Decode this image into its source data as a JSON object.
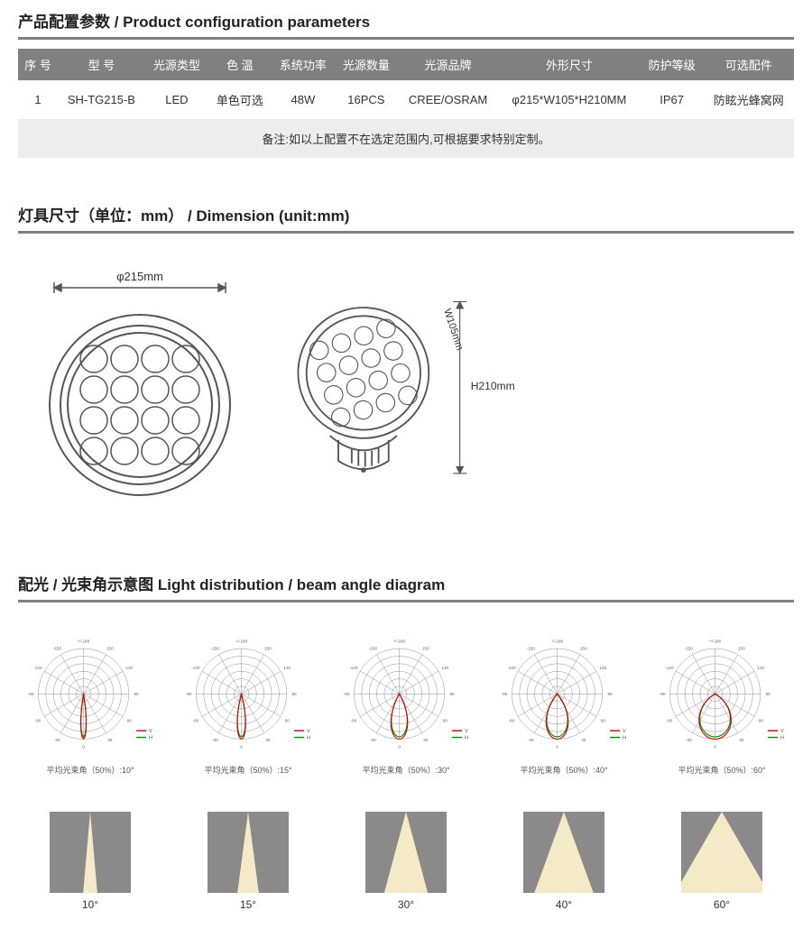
{
  "section1": {
    "title": "产品配置参数 / Product configuration parameters",
    "columns": [
      "序  号",
      "型  号",
      "光源类型",
      "色  温",
      "系统功率",
      "光源数量",
      "光源品牌",
      "外形尺寸",
      "防护等级",
      "可选配件"
    ],
    "row": [
      "1",
      "SH-TG215-B",
      "LED",
      "单色可选",
      "48W",
      "16PCS",
      "CREE/OSRAM",
      "φ215*W105*H210MM",
      "IP67",
      "防眩光蜂窝网"
    ],
    "note": "备注:如以上配置不在选定范围内,可根据要求特别定制。",
    "header_bg": "#808080",
    "header_fg": "#ffffff",
    "note_bg": "#ededed"
  },
  "section2": {
    "title": "灯具尺寸（单位：mm） / Dimension (unit:mm)",
    "diameter_label": "φ215mm",
    "width_label": "W105mm",
    "height_label": "H210mm",
    "led_count": 16,
    "stroke": "#555555"
  },
  "section3": {
    "title": "配光 / 光束角示意图  Light distribution / beam angle diagram",
    "polar": {
      "angle_labels": [
        "-180",
        "+/-180",
        "-150",
        "150",
        "-120",
        "120",
        "-90",
        "90",
        "-60",
        "60",
        "-30",
        "30",
        "0"
      ],
      "grid_color": "#888888",
      "curve_color_v": "#d00000",
      "curve_color_h": "#008800",
      "legend_v": "V",
      "legend_h": "H",
      "items": [
        {
          "half_angle": 10,
          "caption": "平均光束角（50%）:10°"
        },
        {
          "half_angle": 15,
          "caption": "平均光束角（50%）:15°"
        },
        {
          "half_angle": 30,
          "caption": "平均光束角（50%）:30°"
        },
        {
          "half_angle": 40,
          "caption": "平均光束角（50%）:40°"
        },
        {
          "half_angle": 60,
          "caption": "平均光束角（50%）:60°"
        }
      ]
    },
    "beams": {
      "bg": "#8a8a8a",
      "beam_color": "#f5eac8",
      "items": [
        {
          "angle": 10,
          "label": "10°"
        },
        {
          "angle": 15,
          "label": "15°"
        },
        {
          "angle": 30,
          "label": "30°"
        },
        {
          "angle": 40,
          "label": "40°"
        },
        {
          "angle": 60,
          "label": "60°"
        }
      ]
    }
  }
}
